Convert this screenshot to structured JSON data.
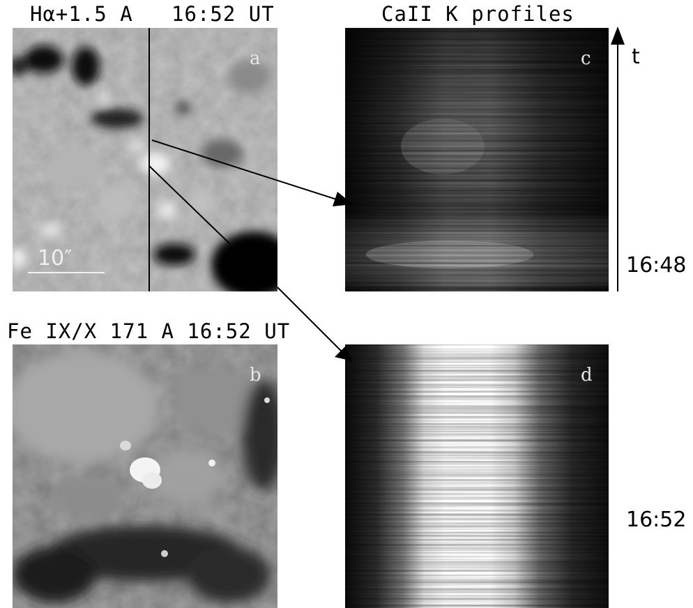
{
  "titles": {
    "halpha": "Hα+1.5 A   16:52 UT",
    "caii": "CaII K profiles",
    "feix": "Fe IX/X 171 A 16:52 UT"
  },
  "panels": {
    "a": "a",
    "b": "b",
    "c": "c",
    "d": "d"
  },
  "scale_bar": "10″",
  "time_axis": {
    "label": "t",
    "start": "16:48",
    "end": "16:52"
  }
}
